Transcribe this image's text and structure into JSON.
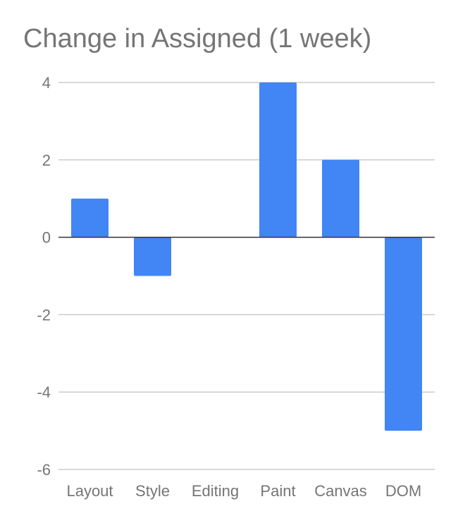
{
  "chart_data": {
    "type": "bar",
    "title": "Change in Assigned (1 week)",
    "xlabel": "",
    "ylabel": "",
    "categories": [
      "Layout",
      "Style",
      "Editing",
      "Paint",
      "Canvas",
      "DOM"
    ],
    "series": [
      {
        "values": [
          1,
          -1,
          0,
          4,
          2,
          -5
        ]
      }
    ],
    "ylim": [
      -6,
      4
    ],
    "yticks": [
      4,
      2,
      0,
      -2,
      -4,
      -6
    ],
    "grid": true,
    "legend": "none",
    "bar_color": "#4285f4",
    "grid_color": "#cccccc",
    "zero_line_color": "#333333",
    "text_color": "#757575"
  }
}
